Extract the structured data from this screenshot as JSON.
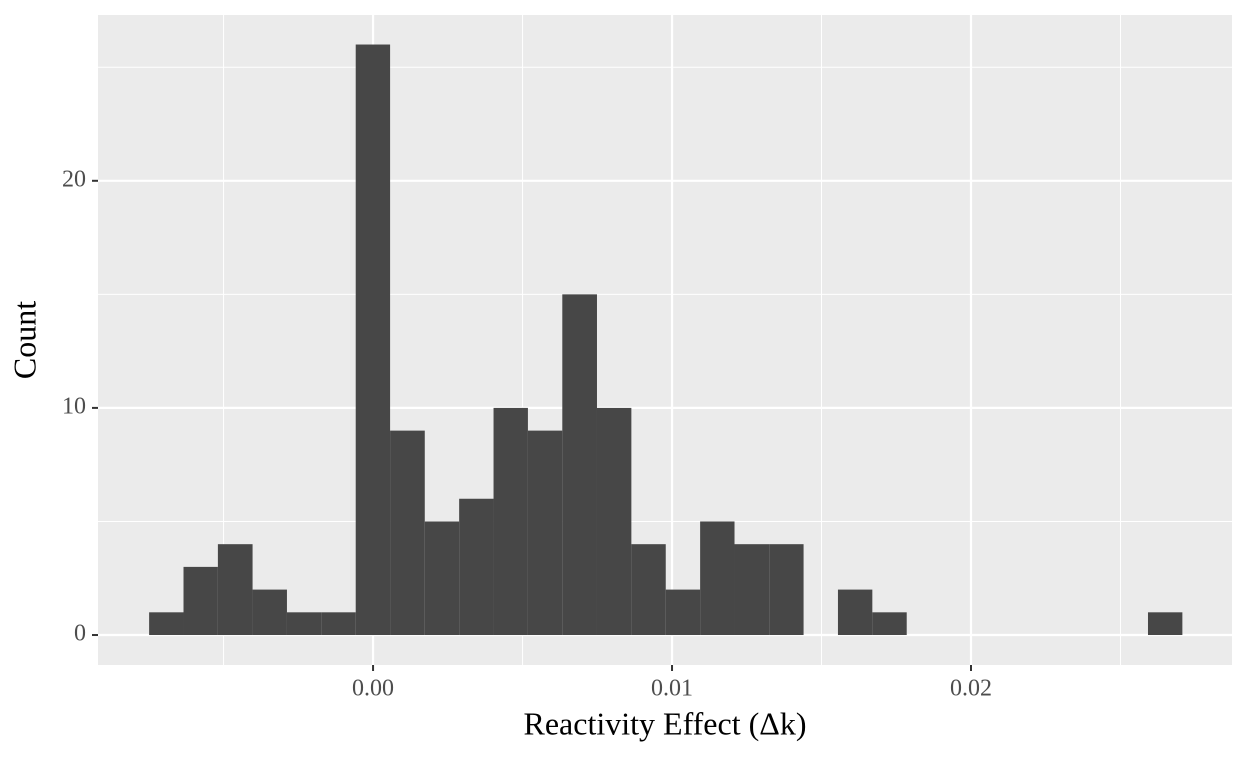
{
  "chart_data": {
    "type": "histogram",
    "x_label": "Reactivity Effect (Δk)",
    "y_label": "Count",
    "bins": [
      -0.00749,
      -0.00634,
      -0.00519,
      -0.00403,
      -0.00288,
      -0.00173,
      -0.00058,
      0.00057,
      0.00173,
      0.00288,
      0.00403,
      0.00518,
      0.00633,
      0.00749,
      0.00864,
      0.00979,
      0.01094,
      0.01209,
      0.01325,
      0.0144,
      0.01555,
      0.0167,
      0.01785,
      0.01901,
      0.02016,
      0.02131,
      0.02246,
      0.02361,
      0.02477,
      0.02592,
      0.02707
    ],
    "values": [
      1,
      3,
      4,
      2,
      1,
      1,
      26,
      9,
      5,
      6,
      10,
      9,
      15,
      10,
      4,
      2,
      5,
      4,
      4,
      0,
      2,
      1,
      0,
      0,
      0,
      0,
      0,
      0,
      0,
      1
    ],
    "color": "#474747",
    "panel_color": "#ebebeb",
    "grid": true,
    "xlim": [
      -0.0092,
      0.02873
    ],
    "xticks": [
      {
        "value": 0,
        "label": "0.00"
      },
      0.01,
      0.02
    ],
    "xminor_ticks": [
      -0.005,
      0.005,
      0.015,
      0.025
    ],
    "ylim": [
      -1.32,
      27.3
    ],
    "yticks": [
      0,
      10,
      20
    ],
    "yminor_ticks": [
      5,
      15,
      25
    ]
  }
}
